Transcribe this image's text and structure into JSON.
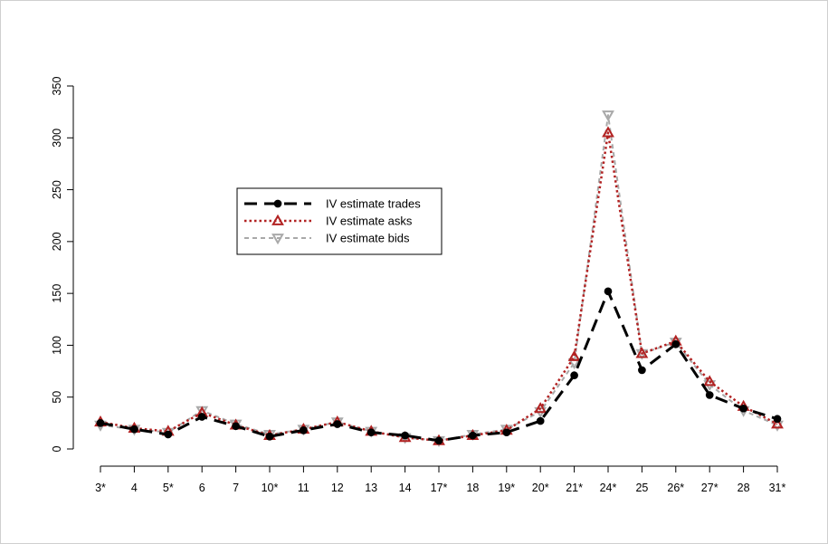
{
  "chart_data": {
    "type": "line",
    "title": "",
    "xlabel": "",
    "ylabel": "",
    "categories": [
      "3*",
      "4",
      "5*",
      "6",
      "7",
      "10*",
      "11",
      "12",
      "13",
      "14",
      "17*",
      "18",
      "19*",
      "20*",
      "21*",
      "24*",
      "25",
      "26*",
      "27*",
      "28",
      "31*"
    ],
    "ylim": [
      0,
      350
    ],
    "yticks": [
      "0",
      "50",
      "100",
      "150",
      "200",
      "250",
      "300",
      "350"
    ],
    "grid": false,
    "legend_position": "upper-left-center",
    "series": [
      {
        "name": "IV estimate trades",
        "color": "#000000",
        "line_style": "long-dash",
        "marker": "circle",
        "values": [
          25,
          19,
          14,
          31,
          22,
          12,
          18,
          24,
          16,
          13,
          8,
          13,
          16,
          27,
          71,
          152,
          76,
          101,
          52,
          39,
          29
        ]
      },
      {
        "name": "IV estimate asks",
        "color": "#b22222",
        "line_style": "dotted",
        "marker": "triangle-up",
        "values": [
          26,
          20,
          17,
          35,
          23,
          13,
          19,
          26,
          17,
          11,
          8,
          13,
          18,
          39,
          89,
          305,
          92,
          104,
          65,
          41,
          24
        ]
      },
      {
        "name": "IV estimate bids",
        "color": "#a9a9a9",
        "line_style": "dashed",
        "marker": "triangle-down",
        "values": [
          23,
          19,
          16,
          37,
          24,
          14,
          19,
          26,
          17,
          11,
          8,
          14,
          19,
          36,
          83,
          322,
          92,
          103,
          62,
          37,
          23
        ]
      }
    ]
  }
}
